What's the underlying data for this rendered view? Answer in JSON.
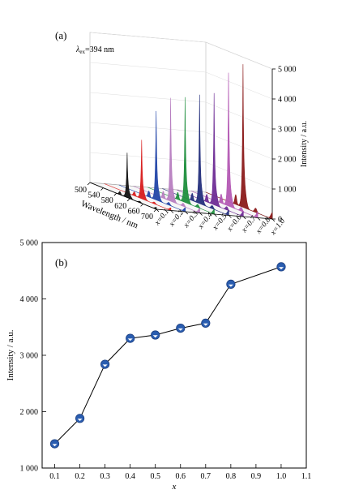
{
  "panel_a": {
    "label": "(a)",
    "excitation": {
      "symbol": "λ",
      "subscript": "ex",
      "value": "=394 nm"
    },
    "chart_data": {
      "type": "line",
      "title": "",
      "xlabel": "Wavelength / nm",
      "ylabel": "Intensity / a.u.",
      "depth_label_prefix": "x=",
      "x_ticks": [
        500,
        540,
        580,
        620,
        660,
        700
      ],
      "y_ticks": [
        0,
        1000,
        2000,
        3000,
        4000,
        5000
      ],
      "y_tick_labels": [
        "0",
        "1 000",
        "2 000",
        "3 000",
        "4 000",
        "5 000"
      ],
      "ylim": [
        0,
        5000
      ],
      "peak_wavelength_nm": 612,
      "series": [
        {
          "name": "x=0.1",
          "color": "#111111",
          "peak": 1430
        },
        {
          "name": "x=0.2",
          "color": "#d81e1e",
          "peak": 1880
        },
        {
          "name": "x=0.3",
          "color": "#2346a8",
          "peak": 2840
        },
        {
          "name": "x=0.4",
          "color": "#b77ec0",
          "peak": 3300
        },
        {
          "name": "x=0.5",
          "color": "#1f8f3e",
          "peak": 3360
        },
        {
          "name": "x=0.6",
          "color": "#242f7c",
          "peak": 3480
        },
        {
          "name": "x=0.7",
          "color": "#6f2d96",
          "peak": 3570
        },
        {
          "name": "x=0.8",
          "color": "#b45ab4",
          "peak": 4260
        },
        {
          "name": "x=1.0",
          "color": "#8b1a1a",
          "peak": 4570
        }
      ]
    }
  },
  "panel_b": {
    "label": "(b)",
    "chart_data": {
      "type": "scatter",
      "title": "",
      "xlabel": "x",
      "ylabel": "Intensity / a.u.",
      "xlim": [
        0.05,
        1.1
      ],
      "ylim": [
        1000,
        5000
      ],
      "x_ticks": [
        0.1,
        0.2,
        0.3,
        0.4,
        0.5,
        0.6,
        0.7,
        0.8,
        0.9,
        1.0,
        1.1
      ],
      "x_tick_labels": [
        "0.1",
        "0.2",
        "0.3",
        "0.4",
        "0.5",
        "0.6",
        "0.7",
        "0.8",
        "0.9",
        "1.0",
        "1.1"
      ],
      "y_ticks": [
        1000,
        2000,
        3000,
        4000,
        5000
      ],
      "y_tick_labels": [
        "1 000",
        "2 000",
        "3 000",
        "4 000",
        "5 000"
      ],
      "grid": false,
      "marker_color": "#2a5db0",
      "x": [
        0.1,
        0.2,
        0.3,
        0.4,
        0.5,
        0.6,
        0.7,
        0.8,
        1.0
      ],
      "y": [
        1430,
        1880,
        2840,
        3300,
        3360,
        3480,
        3570,
        4260,
        4570
      ]
    }
  }
}
